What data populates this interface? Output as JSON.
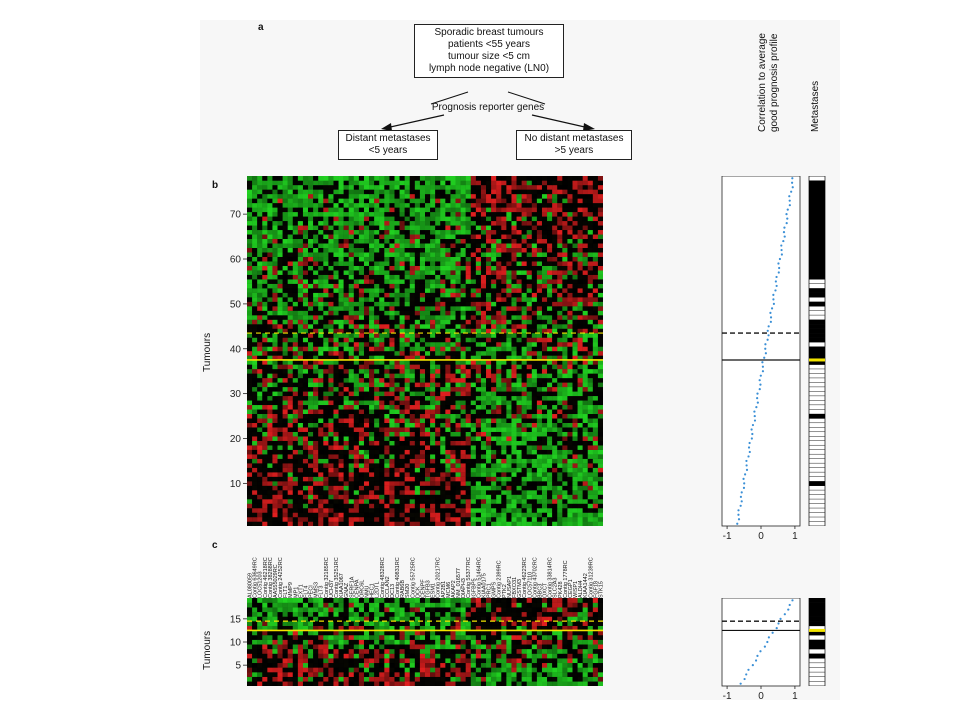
{
  "panel_labels": {
    "a": "a",
    "b": "b",
    "c": "c"
  },
  "flow": {
    "top_box": [
      "Sporadic breast tumours",
      "patients <55 years",
      "tumour size <5 cm",
      "lymph node negative (LN0)"
    ],
    "middle": "Prognosis reporter genes",
    "left_box": [
      "Distant metastases",
      "<5 years"
    ],
    "right_box": [
      "No distant metastases",
      ">5 years"
    ]
  },
  "headers": {
    "correlation": [
      "Correlation to average",
      "good prognosis profile"
    ],
    "metastases": "Metastases"
  },
  "axis_titles": {
    "b": "Tumours",
    "c": "Tumours"
  },
  "colors": {
    "green": "#21d321",
    "red": "#e01f1f",
    "black": "#000000",
    "yellow_line": "#f2e400",
    "dots": "#3a8fd6"
  },
  "chart_data": [
    {
      "panel": "b",
      "type": "heatmap",
      "n_rows": 78,
      "n_cols": 70,
      "ylabel": "Tumours",
      "yticks": [
        10,
        20,
        30,
        40,
        50,
        60,
        70
      ],
      "threshold_solid": 37,
      "threshold_dashed": 43,
      "correlation_xticks": [
        -1,
        0,
        1
      ],
      "correlation_range": [
        -0.7,
        0.95
      ]
    },
    {
      "panel": "c",
      "type": "heatmap",
      "n_rows": 19,
      "n_cols": 70,
      "ylabel": "Tumours",
      "yticks": [
        5,
        10,
        15
      ],
      "threshold_solid": 12,
      "threshold_dashed": 14,
      "correlation_xticks": [
        -1,
        0,
        1
      ],
      "correlation_range": [
        -0.6,
        0.95
      ],
      "gene_labels": [
        "AL080059",
        "Contig 63649RC",
        "LOC51203",
        "Contig 46218RC",
        "Contig 38288RC",
        "AA555029RC",
        "Contig 24252RC",
        "FLT1",
        "MMP9",
        "MP1",
        "EXT1",
        "FLT4",
        "PECI",
        "MMS3",
        "FLT3",
        "Contig 32185RC",
        "UCH37",
        "Contig 35251RC",
        "KIAA1067",
        "GNAZ",
        "SERF1A",
        "CENPA",
        "ORC6L",
        "NMU",
        "HEC1",
        "L2DTL",
        "Contig 48328RC",
        "CCLAN2",
        "DC13",
        "Contig 40831RC",
        "RAB6B",
        "SM20",
        "Contig 55725RC",
        "DCK",
        "CENPF",
        "TGFB3",
        "ESM1",
        "Contig 20217RC",
        "AP2B1",
        "MCM6",
        "AKAP2",
        "NM_016577",
        "DIAPH3",
        "Contig 55377RC",
        "IGFBP5",
        "Contig 51464RC",
        "KIAA0175",
        "PRC1",
        "GMPS",
        "Contig 2399RC",
        "PTK2",
        "NUSAP1",
        "FBXO31",
        "GSTM3",
        "Contig 46223RC",
        "LOC57110",
        "Contig 43702RC",
        "BBC3",
        "OXCT",
        "Contig 33814RC",
        "SLC2A3",
        "PK428",
        "Contig 1778RC",
        "CEGP1",
        "WISP1",
        "ALDH4",
        "KIAA1442",
        "Contig 31239RC",
        "FGF18",
        "STK15"
      ]
    }
  ]
}
